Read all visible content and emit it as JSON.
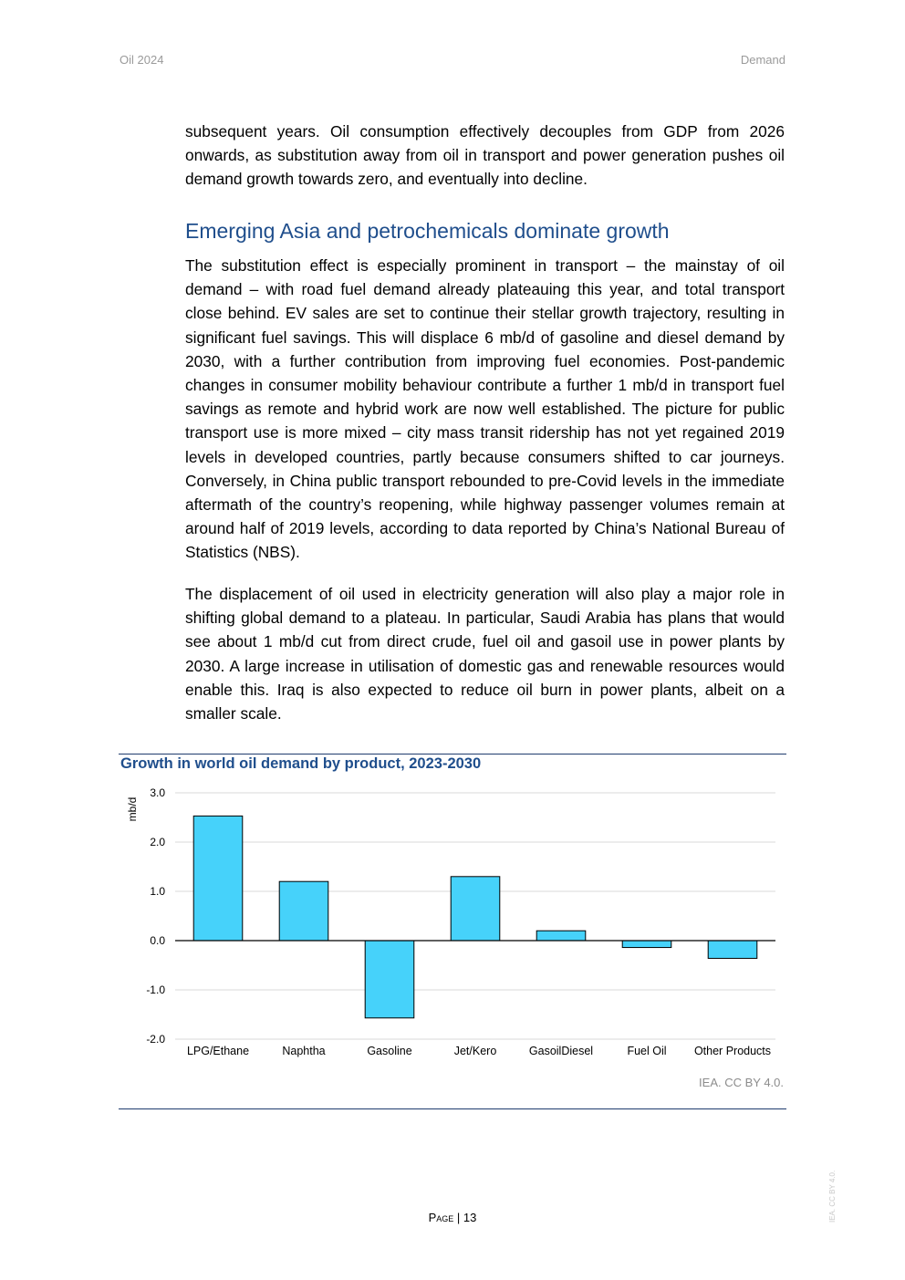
{
  "header": {
    "left": "Oil 2024",
    "right": "Demand"
  },
  "paragraphs": {
    "p1": "subsequent years. Oil consumption effectively decouples from GDP from 2026 onwards, as substitution away from oil in transport and power generation pushes oil demand growth towards zero, and eventually into decline.",
    "heading": "Emerging Asia and petrochemicals dominate growth",
    "p2": "The substitution effect is especially prominent in transport – the mainstay of oil demand – with road fuel demand already plateauing this year, and total transport close behind. EV sales are set to continue their stellar growth trajectory, resulting in significant fuel savings. This will displace 6 mb/d of gasoline and diesel demand by 2030, with a further contribution from improving fuel economies. Post-pandemic changes in consumer mobility behaviour contribute a further 1 mb/d in transport fuel savings as remote and hybrid work are now well established. The picture for public transport use is more mixed – city mass transit ridership has not yet regained 2019 levels in developed countries, partly because consumers shifted to car journeys. Conversely, in China public transport rebounded to pre-Covid levels in the immediate aftermath of the country’s reopening, while highway passenger volumes remain at around half of 2019 levels, according to data reported by China’s National Bureau of Statistics (NBS).",
    "p3": "The displacement of oil used in electricity generation will also play a major role in shifting global demand to a plateau. In particular, Saudi Arabia has plans that would see about 1 mb/d cut from direct crude, fuel oil and gasoil use in power plants by 2030. A large increase in utilisation of domestic gas and renewable resources would enable this. Iraq is also expected to reduce oil burn in power plants, albeit on a smaller scale."
  },
  "chart_data": {
    "type": "bar",
    "title": "Growth in world oil demand by product, 2023-2030",
    "xlabel": "",
    "ylabel": "mb/d",
    "categories": [
      "LPG/Ethane",
      "Naphtha",
      "Gasoline",
      "Jet/Kero",
      "GasoilDiesel",
      "Fuel Oil",
      "Other Products"
    ],
    "values": [
      2.53,
      1.2,
      -1.57,
      1.3,
      0.2,
      -0.14,
      -0.36
    ],
    "ylim": [
      -2.0,
      3.0
    ],
    "yticks": [
      -2.0,
      -1.0,
      0.0,
      1.0,
      2.0,
      3.0
    ],
    "ytick_labels": [
      "-2.0",
      "-1.0",
      "0.0",
      "1.0",
      "2.0",
      "3.0"
    ],
    "grid": true,
    "bar_color": "#46d2fa",
    "credit": "IEA. CC BY 4.0."
  },
  "footer": {
    "page_label": "Page",
    "page_separator": "|",
    "page_number": "13"
  },
  "watermark": "IEA. CC BY 4.0."
}
